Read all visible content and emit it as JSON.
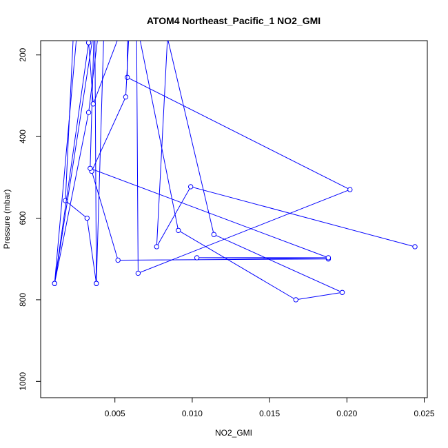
{
  "chart_data": {
    "type": "line",
    "title": "ATOM4 Northeast_Pacific_1 NO2_GMI",
    "xlabel": "NO2_GMI",
    "ylabel": "Pressure (mbar)",
    "xlim": [
      0.0002,
      0.0252
    ],
    "ylim": [
      1040,
      165
    ],
    "y_reversed": true,
    "x_ticks": [
      "0.005",
      "0.010",
      "0.015",
      "0.020",
      "0.025"
    ],
    "x_tick_values": [
      0.005,
      0.01,
      0.015,
      0.02,
      0.025
    ],
    "y_ticks": [
      "200",
      "400",
      "600",
      "800",
      "1000"
    ],
    "y_tick_values": [
      200,
      400,
      600,
      800,
      1000
    ],
    "line_color": "#0000ff",
    "series": [
      {
        "x": [
          0.0024,
          0.0018,
          0.0032,
          0.0038,
          0.0044,
          0.0033,
          0.0011,
          0.0036,
          0.0058,
          0.0058,
          0.0202,
          0.0065,
          0.0064,
          0.0091,
          0.0167,
          0.0197,
          0.0114,
          0.0084,
          0.0077,
          0.0099,
          0.0244
        ],
        "y": [
          80,
          557,
          600,
          760,
          0,
          341,
          760,
          150,
          0,
          255,
          530,
          735,
          120,
          630,
          800,
          782,
          640,
          158,
          670,
          523,
          670
        ]
      },
      {
        "x": [
          0.0027,
          0.0011,
          0.0033,
          0.0036,
          0.006,
          0.0057,
          0.0035,
          0.0052,
          0.0188,
          0.0103,
          0.0188,
          0.0034,
          0.0037,
          0.0038
        ],
        "y": [
          80,
          760,
          170,
          320,
          80,
          303,
          485,
          703,
          700,
          697,
          697,
          478,
          80,
          760
        ]
      }
    ]
  }
}
